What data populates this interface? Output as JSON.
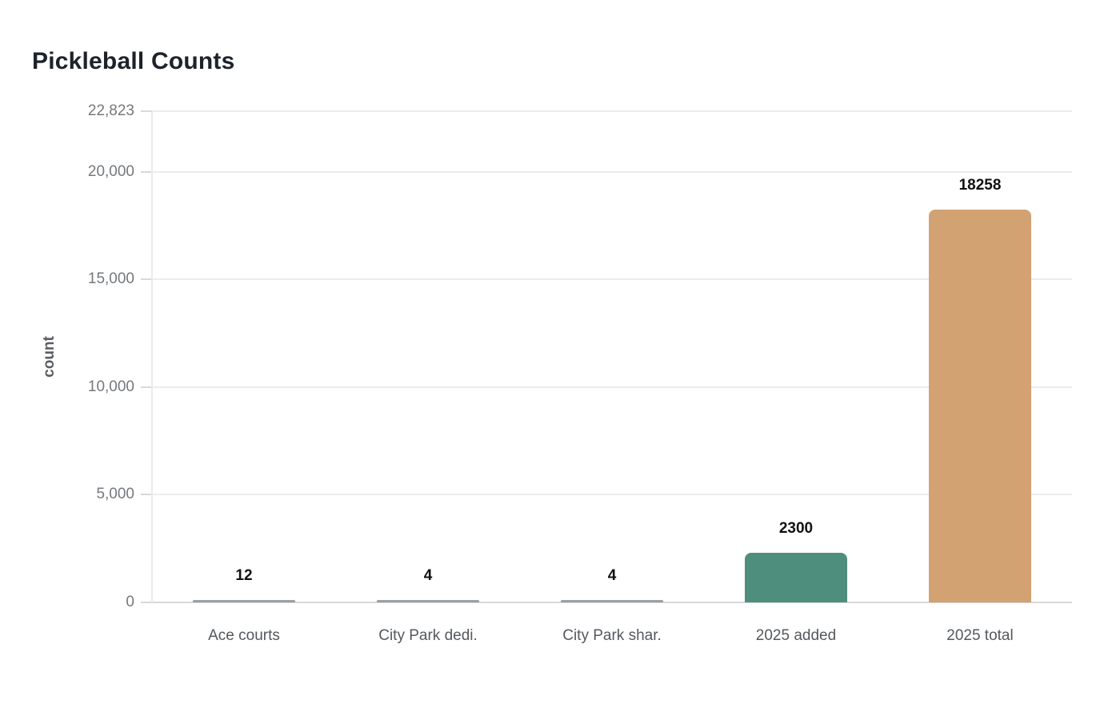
{
  "header": {
    "title": "Pickleball Counts"
  },
  "chart_data": {
    "type": "bar",
    "title": "Pickleball Counts",
    "xlabel": "",
    "ylabel": "count",
    "categories": [
      "Ace courts",
      "City Park dedi.",
      "City Park shar.",
      "2025 added",
      "2025 total"
    ],
    "values": [
      12,
      4,
      4,
      2300,
      18258
    ],
    "data_labels": [
      "12",
      "4",
      "4",
      "2300",
      "18258"
    ],
    "bar_colors": [
      "#9aa2a7",
      "#9aa2a7",
      "#9aa2a7",
      "#4e8e7c",
      "#d2a273"
    ],
    "ylim": [
      0,
      22823
    ],
    "yticks": [
      {
        "value": 0,
        "label": "0"
      },
      {
        "value": 5000,
        "label": "5,000"
      },
      {
        "value": 10000,
        "label": "10,000"
      },
      {
        "value": 15000,
        "label": "15,000"
      },
      {
        "value": 20000,
        "label": "20,000"
      },
      {
        "value": 22823,
        "label": "22,823"
      }
    ],
    "grid": true,
    "legend_position": "none",
    "colors": {
      "gridline": "#ececec",
      "zero_line": "#d9d9d9",
      "tick_label": "#75787c",
      "value_label": "#111111",
      "category_label": "#55585c",
      "title": "#1e222a"
    }
  }
}
